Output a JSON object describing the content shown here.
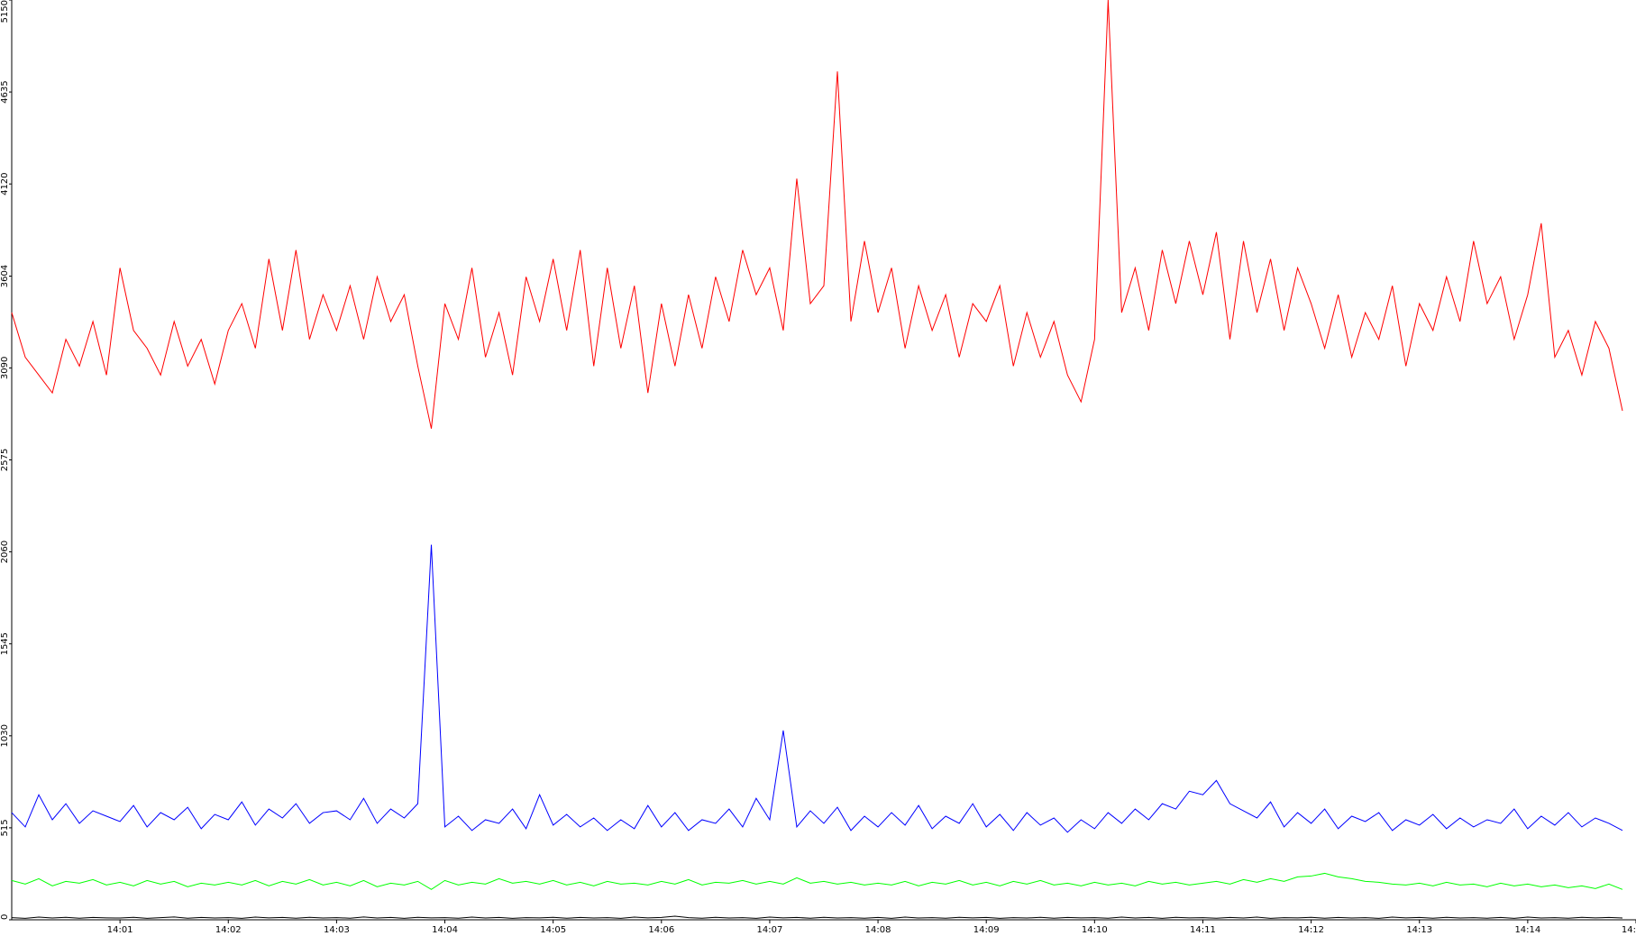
{
  "chart_data": {
    "type": "line",
    "x": [
      0,
      0.125,
      0.25,
      0.375,
      0.5,
      0.625,
      0.75,
      0.875,
      1,
      1.125,
      1.25,
      1.375,
      1.5,
      1.625,
      1.75,
      1.875,
      2,
      2.125,
      2.25,
      2.375,
      2.5,
      2.625,
      2.75,
      2.875,
      3,
      3.125,
      3.25,
      3.375,
      3.5,
      3.625,
      3.75,
      3.875,
      4,
      4.125,
      4.25,
      4.375,
      4.5,
      4.625,
      4.75,
      4.875,
      5,
      5.125,
      5.25,
      5.375,
      5.5,
      5.625,
      5.75,
      5.875,
      6,
      6.125,
      6.25,
      6.375,
      6.5,
      6.625,
      6.75,
      6.875,
      7,
      7.125,
      7.25,
      7.375,
      7.5,
      7.625,
      7.75,
      7.875,
      8,
      8.125,
      8.25,
      8.375,
      8.5,
      8.625,
      8.75,
      8.875,
      9,
      9.125,
      9.25,
      9.375,
      9.5,
      9.625,
      9.75,
      9.875,
      10,
      10.125,
      10.25,
      10.375,
      10.5,
      10.625,
      10.75,
      10.875,
      11,
      11.125,
      11.25,
      11.375,
      11.5,
      11.625,
      11.75,
      11.875,
      12,
      12.125,
      12.25,
      12.375,
      12.5,
      12.625,
      12.75,
      12.875,
      13,
      13.125,
      13.25,
      13.375,
      13.5,
      13.625,
      13.75,
      13.875,
      14,
      14.125,
      14.25,
      14.375,
      14.5,
      14.625,
      14.75,
      14.875
    ],
    "series": [
      {
        "color": "#ff0000",
        "values": [
          3400,
          3150,
          3050,
          2950,
          3250,
          3100,
          3350,
          3050,
          3650,
          3300,
          3200,
          3050,
          3350,
          3100,
          3250,
          3000,
          3300,
          3450,
          3200,
          3700,
          3300,
          3750,
          3250,
          3500,
          3300,
          3550,
          3250,
          3600,
          3350,
          3500,
          3100,
          2750,
          3450,
          3250,
          3650,
          3150,
          3400,
          3050,
          3600,
          3350,
          3700,
          3300,
          3750,
          3100,
          3650,
          3200,
          3550,
          2950,
          3450,
          3100,
          3500,
          3200,
          3600,
          3350,
          3750,
          3500,
          3650,
          3300,
          4150,
          3450,
          3550,
          4750,
          3350,
          3800,
          3400,
          3650,
          3200,
          3550,
          3300,
          3500,
          3150,
          3450,
          3350,
          3550,
          3100,
          3400,
          3150,
          3350,
          3050,
          2900,
          3250,
          5150,
          3400,
          3650,
          3300,
          3750,
          3450,
          3800,
          3500,
          3850,
          3250,
          3800,
          3400,
          3700,
          3300,
          3650,
          3450,
          3200,
          3500,
          3150,
          3400,
          3250,
          3550,
          3100,
          3450,
          3300,
          3600,
          3350,
          3800,
          3450,
          3600,
          3250,
          3500,
          3900,
          3150,
          3300,
          3050,
          3350,
          3200,
          2850
        ]
      },
      {
        "color": "#0000ff",
        "values": [
          600,
          520,
          700,
          560,
          650,
          540,
          610,
          580,
          550,
          640,
          520,
          600,
          560,
          630,
          510,
          590,
          560,
          660,
          530,
          620,
          570,
          650,
          540,
          600,
          610,
          560,
          680,
          540,
          620,
          570,
          650,
          2100,
          520,
          580,
          500,
          560,
          540,
          620,
          510,
          700,
          530,
          590,
          520,
          570,
          500,
          560,
          510,
          640,
          520,
          600,
          500,
          560,
          540,
          620,
          520,
          680,
          560,
          1060,
          520,
          610,
          540,
          630,
          500,
          580,
          520,
          600,
          530,
          640,
          510,
          580,
          540,
          650,
          520,
          590,
          500,
          600,
          530,
          570,
          490,
          560,
          510,
          600,
          540,
          620,
          560,
          650,
          620,
          720,
          700,
          780,
          650,
          610,
          570,
          660,
          520,
          600,
          540,
          620,
          510,
          580,
          550,
          600,
          500,
          560,
          530,
          590,
          510,
          570,
          520,
          560,
          540,
          620,
          510,
          580,
          530,
          600,
          520,
          570,
          540,
          500
        ]
      },
      {
        "color": "#00ff00",
        "values": [
          220,
          200,
          230,
          190,
          215,
          205,
          225,
          195,
          210,
          190,
          220,
          200,
          215,
          185,
          205,
          195,
          210,
          195,
          220,
          190,
          215,
          200,
          225,
          195,
          210,
          190,
          220,
          185,
          205,
          195,
          215,
          170,
          220,
          195,
          210,
          200,
          230,
          205,
          215,
          200,
          220,
          195,
          210,
          190,
          215,
          200,
          205,
          195,
          215,
          200,
          225,
          195,
          210,
          205,
          220,
          200,
          215,
          200,
          235,
          205,
          215,
          200,
          210,
          195,
          205,
          195,
          215,
          190,
          210,
          200,
          220,
          195,
          210,
          190,
          215,
          200,
          220,
          195,
          205,
          190,
          210,
          195,
          205,
          190,
          215,
          200,
          210,
          195,
          205,
          215,
          200,
          225,
          210,
          230,
          215,
          240,
          245,
          260,
          240,
          230,
          215,
          210,
          200,
          195,
          205,
          190,
          210,
          195,
          200,
          185,
          205,
          190,
          200,
          185,
          195,
          180,
          190,
          175,
          200,
          170
        ]
      },
      {
        "color": "#000000",
        "values": [
          12,
          8,
          15,
          10,
          14,
          9,
          13,
          11,
          10,
          14,
          8,
          12,
          16,
          9,
          13,
          10,
          12,
          8,
          15,
          11,
          13,
          9,
          14,
          10,
          12,
          9,
          16,
          10,
          13,
          8,
          14,
          11,
          12,
          9,
          15,
          10,
          13,
          8,
          12,
          11,
          14,
          9,
          13,
          10,
          12,
          8,
          15,
          11,
          13,
          20,
          12,
          9,
          14,
          10,
          12,
          8,
          15,
          11,
          13,
          9,
          14,
          10,
          12,
          9,
          13,
          8,
          15,
          10,
          12,
          9,
          14,
          11,
          13,
          8,
          12,
          10,
          14,
          9,
          13,
          11,
          12,
          9,
          15,
          10,
          13,
          8,
          14,
          11,
          12,
          9,
          13,
          10,
          15,
          8,
          12,
          11,
          14,
          9,
          13,
          10,
          12,
          8,
          15,
          11,
          13,
          9,
          14,
          10,
          12,
          9,
          13,
          8,
          15,
          10,
          12,
          9,
          14,
          11,
          13,
          10
        ]
      }
    ],
    "xlim": [
      0,
      15
    ],
    "xticks": [
      {
        "value": 1,
        "label": "14:01"
      },
      {
        "value": 2,
        "label": "14:02"
      },
      {
        "value": 3,
        "label": "14:03"
      },
      {
        "value": 4,
        "label": "14:04"
      },
      {
        "value": 5,
        "label": "14:05"
      },
      {
        "value": 6,
        "label": "14:06"
      },
      {
        "value": 7,
        "label": "14:07"
      },
      {
        "value": 8,
        "label": "14:08"
      },
      {
        "value": 9,
        "label": "14:09"
      },
      {
        "value": 10,
        "label": "14:10"
      },
      {
        "value": 11,
        "label": "14:11"
      },
      {
        "value": 12,
        "label": "14:12"
      },
      {
        "value": 13,
        "label": "14:13"
      },
      {
        "value": 14,
        "label": "14:14"
      },
      {
        "value": 15,
        "label": "14:"
      }
    ],
    "ylim": [
      0,
      5150
    ],
    "yticks": [
      0,
      515,
      1030,
      1545,
      2060,
      2575,
      3090,
      3604,
      4120,
      4635,
      5150
    ]
  }
}
